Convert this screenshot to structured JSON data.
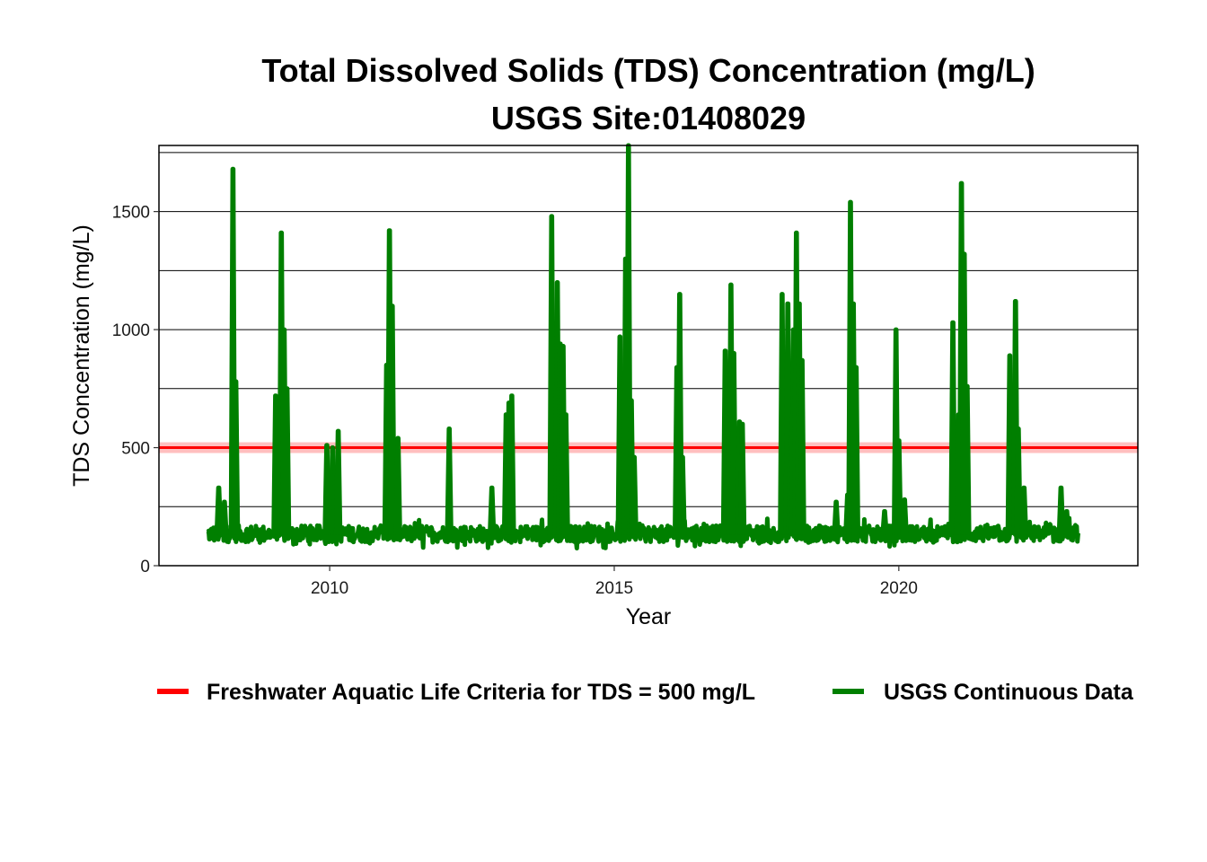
{
  "chart_data": {
    "type": "line",
    "title": "Total Dissolved Solids (TDS) Concentration (mg/L)",
    "subtitle": "USGS Site:01408029",
    "xlabel": "Year",
    "ylabel": "TDS Concentration (mg/L)",
    "xlim": [
      2007.0,
      2024.2
    ],
    "ylim": [
      0,
      1780
    ],
    "x_ticks": [
      2010,
      2015,
      2020
    ],
    "x_tick_labels": [
      "2010",
      "2015",
      "2020"
    ],
    "y_ticks": [
      0,
      500,
      1000,
      1500
    ],
    "y_tick_labels": [
      "0",
      "500",
      "1000",
      "1500"
    ],
    "y_gridlines": [
      250,
      500,
      750,
      1000,
      1250,
      1500,
      1750
    ],
    "grid": "horizontal",
    "legend_position": "bottom",
    "reference_line": {
      "name": "Freshwater Aquatic Life Criteria for TDS = 500 mg/L",
      "value": 500,
      "color": "#ff0000"
    },
    "series": [
      {
        "name": "USGS Continuous Data",
        "color": "#007f00",
        "baseline_range": [
          60,
          190
        ],
        "x_range": [
          2007.85,
          2023.15
        ],
        "spikes": [
          {
            "x": 2008.05,
            "y": 330
          },
          {
            "x": 2008.15,
            "y": 270
          },
          {
            "x": 2008.3,
            "y": 1680
          },
          {
            "x": 2008.35,
            "y": 780
          },
          {
            "x": 2009.05,
            "y": 720
          },
          {
            "x": 2009.15,
            "y": 1410
          },
          {
            "x": 2009.2,
            "y": 1000
          },
          {
            "x": 2009.25,
            "y": 750
          },
          {
            "x": 2009.95,
            "y": 510
          },
          {
            "x": 2010.05,
            "y": 500
          },
          {
            "x": 2010.1,
            "y": 400
          },
          {
            "x": 2010.15,
            "y": 570
          },
          {
            "x": 2011.0,
            "y": 850
          },
          {
            "x": 2011.05,
            "y": 1420
          },
          {
            "x": 2011.1,
            "y": 1100
          },
          {
            "x": 2011.2,
            "y": 540
          },
          {
            "x": 2012.1,
            "y": 580
          },
          {
            "x": 2012.85,
            "y": 330
          },
          {
            "x": 2013.1,
            "y": 640
          },
          {
            "x": 2013.15,
            "y": 690
          },
          {
            "x": 2013.2,
            "y": 720
          },
          {
            "x": 2013.9,
            "y": 1480
          },
          {
            "x": 2014.0,
            "y": 1200
          },
          {
            "x": 2014.05,
            "y": 940
          },
          {
            "x": 2014.1,
            "y": 930
          },
          {
            "x": 2014.15,
            "y": 640
          },
          {
            "x": 2015.1,
            "y": 970
          },
          {
            "x": 2015.2,
            "y": 1300
          },
          {
            "x": 2015.25,
            "y": 1780
          },
          {
            "x": 2015.3,
            "y": 700
          },
          {
            "x": 2015.35,
            "y": 460
          },
          {
            "x": 2016.1,
            "y": 840
          },
          {
            "x": 2016.15,
            "y": 1150
          },
          {
            "x": 2016.2,
            "y": 460
          },
          {
            "x": 2016.95,
            "y": 910
          },
          {
            "x": 2017.05,
            "y": 1190
          },
          {
            "x": 2017.1,
            "y": 900
          },
          {
            "x": 2017.2,
            "y": 610
          },
          {
            "x": 2017.25,
            "y": 600
          },
          {
            "x": 2017.95,
            "y": 1150
          },
          {
            "x": 2018.05,
            "y": 1110
          },
          {
            "x": 2018.1,
            "y": 560
          },
          {
            "x": 2018.15,
            "y": 1000
          },
          {
            "x": 2018.2,
            "y": 1410
          },
          {
            "x": 2018.25,
            "y": 1110
          },
          {
            "x": 2018.3,
            "y": 870
          },
          {
            "x": 2018.9,
            "y": 270
          },
          {
            "x": 2019.1,
            "y": 300
          },
          {
            "x": 2019.15,
            "y": 1540
          },
          {
            "x": 2019.2,
            "y": 1110
          },
          {
            "x": 2019.25,
            "y": 840
          },
          {
            "x": 2019.75,
            "y": 230
          },
          {
            "x": 2019.95,
            "y": 1000
          },
          {
            "x": 2020.0,
            "y": 530
          },
          {
            "x": 2020.1,
            "y": 280
          },
          {
            "x": 2020.95,
            "y": 1030
          },
          {
            "x": 2021.05,
            "y": 640
          },
          {
            "x": 2021.1,
            "y": 1620
          },
          {
            "x": 2021.15,
            "y": 1320
          },
          {
            "x": 2021.2,
            "y": 760
          },
          {
            "x": 2021.95,
            "y": 890
          },
          {
            "x": 2022.05,
            "y": 1120
          },
          {
            "x": 2022.1,
            "y": 580
          },
          {
            "x": 2022.2,
            "y": 330
          },
          {
            "x": 2022.85,
            "y": 330
          },
          {
            "x": 2022.95,
            "y": 230
          }
        ]
      }
    ]
  }
}
